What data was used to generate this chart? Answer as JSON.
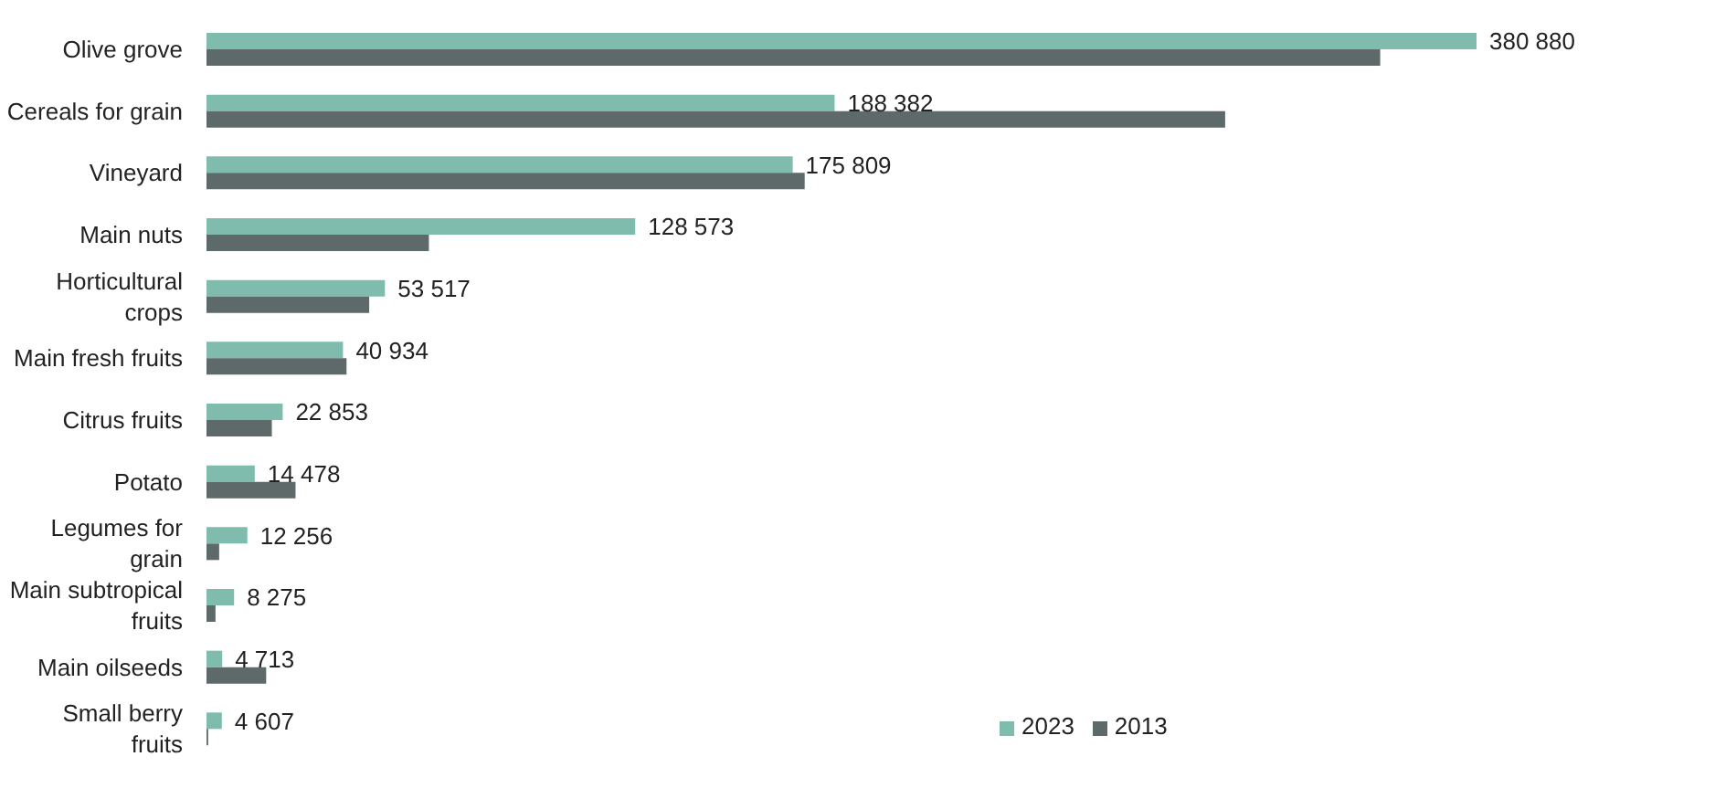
{
  "chart_data": {
    "type": "bar",
    "orientation": "horizontal",
    "categories": [
      "Olive grove",
      "Cereals for grain",
      "Vineyard",
      "Main nuts",
      "Horticultural crops",
      "Main fresh fruits",
      "Citrus fruits",
      "Potato",
      "Legumes for grain",
      "Main subtropical fruits",
      "Main oilseeds",
      "Small berry fruits"
    ],
    "series": [
      {
        "name": "2023",
        "color": "#80bcad",
        "values": [
          380880,
          188382,
          175809,
          128573,
          53517,
          40934,
          22853,
          14478,
          12256,
          8275,
          4713,
          4607
        ],
        "value_labels": [
          "380 880",
          "188 382",
          "175 809",
          "128 573",
          "53 517",
          "40 934",
          "22 853",
          "14 478",
          "12 256",
          "8 275",
          "4 713",
          "4 607"
        ]
      },
      {
        "name": "2013",
        "color": "#5e6a6a",
        "values": [
          352000,
          305500,
          179400,
          66700,
          48800,
          42000,
          19600,
          26700,
          3800,
          2700,
          17900,
          500
        ]
      }
    ],
    "legend": "bottom right"
  }
}
